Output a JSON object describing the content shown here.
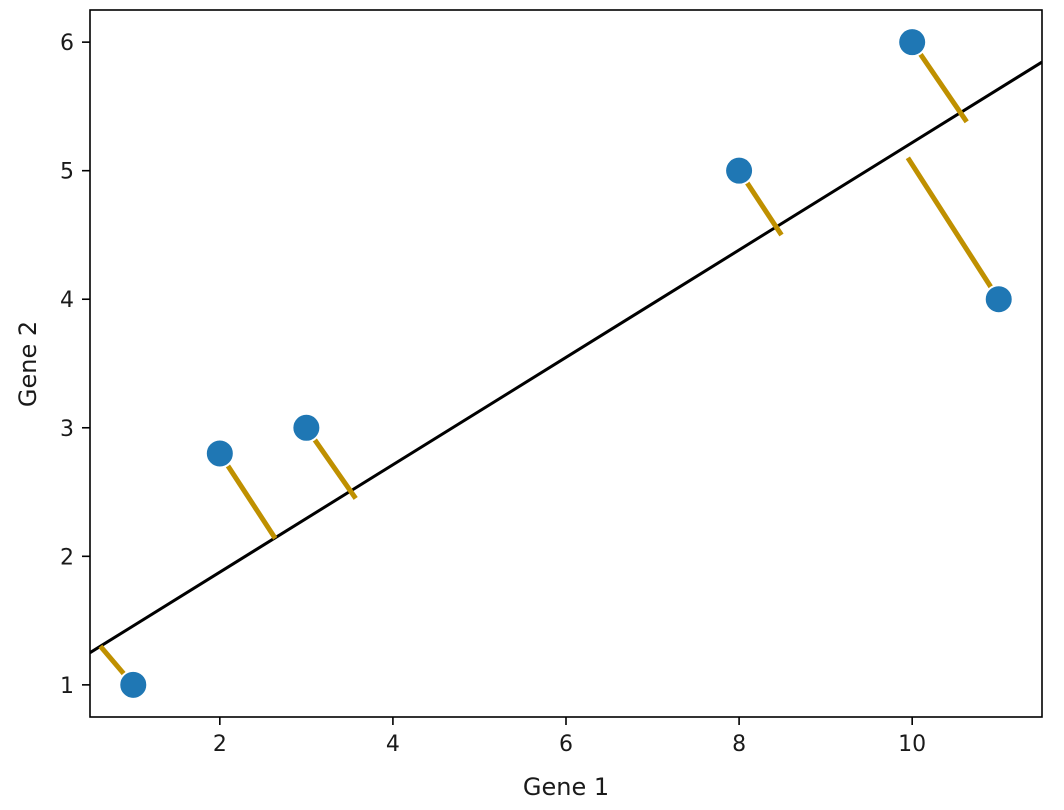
{
  "chart_data": {
    "type": "scatter",
    "title": "",
    "xlabel": "Gene 1",
    "ylabel": "Gene 2",
    "xlim": [
      0.5,
      11.5
    ],
    "ylim": [
      0.75,
      6.25
    ],
    "xticks": [
      2,
      4,
      6,
      8,
      10
    ],
    "yticks": [
      1,
      2,
      3,
      4,
      5,
      6
    ],
    "grid": false,
    "points": [
      {
        "x": 1,
        "y": 1.0
      },
      {
        "x": 2,
        "y": 2.8
      },
      {
        "x": 3,
        "y": 3.0
      },
      {
        "x": 8,
        "y": 5.0
      },
      {
        "x": 10,
        "y": 6.0
      },
      {
        "x": 11,
        "y": 4.0
      }
    ],
    "fit_line": {
      "slope": 0.4177,
      "intercept": 1.0415
    },
    "projections": [
      {
        "from": [
          1,
          1.0
        ],
        "to": [
          0.62,
          1.3
        ]
      },
      {
        "from": [
          2,
          2.8
        ],
        "to": [
          2.64,
          2.14
        ]
      },
      {
        "from": [
          3,
          3.0
        ],
        "to": [
          3.57,
          2.45
        ]
      },
      {
        "from": [
          8,
          5.0
        ],
        "to": [
          8.49,
          4.5
        ]
      },
      {
        "from": [
          10,
          6.0
        ],
        "to": [
          10.63,
          5.38
        ]
      },
      {
        "from": [
          11,
          4.0
        ],
        "to": [
          9.95,
          5.1
        ]
      }
    ],
    "colors": {
      "points": "#1f77b4",
      "fit_line": "#000000",
      "projections": "#bf9000"
    }
  }
}
